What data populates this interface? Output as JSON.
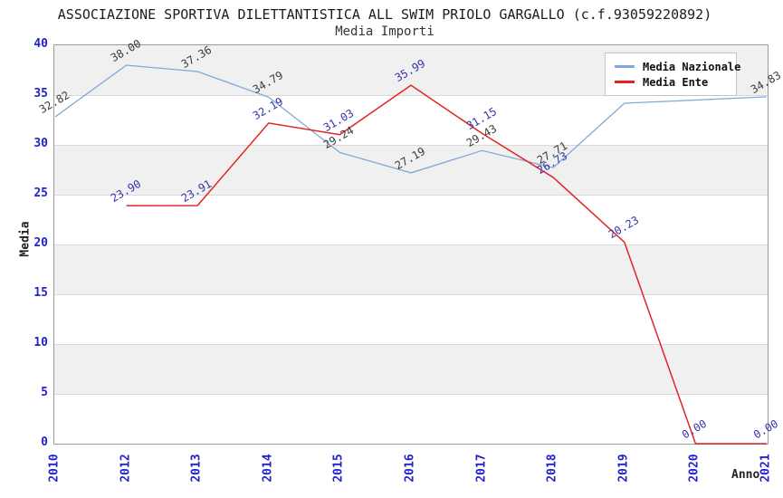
{
  "chart_data": {
    "type": "line",
    "title": "ASSOCIAZIONE SPORTIVA DILETTANTISTICA ALL SWIM PRIOLO GARGALLO (c.f.93059220892)",
    "subtitle": "Media Importi",
    "xlabel": "Anno",
    "ylabel": "Media",
    "categories": [
      "2010",
      "2012",
      "2013",
      "2014",
      "2015",
      "2016",
      "2017",
      "2018",
      "2019",
      "2020",
      "2021"
    ],
    "ylim": [
      0,
      40
    ],
    "ytick_step": 5,
    "grid": "horizontal",
    "legend_position": "top-right",
    "band_colors": [
      "#f0f0f0",
      "#ffffff"
    ],
    "grid_color": "#d9d9d9",
    "axis_tick_color": "#2222cc",
    "series": [
      {
        "name": "Media Nazionale",
        "color": "#7ea9da",
        "label_color": "#3a3a3a",
        "values": [
          32.82,
          38.0,
          37.36,
          34.79,
          29.24,
          27.19,
          29.43,
          27.71,
          34.18,
          34.5,
          34.83
        ],
        "labels": [
          "32.82",
          "38.00",
          "37.36",
          "34.79",
          "29.24",
          "27.19",
          "29.43",
          "27.71",
          "",
          "",
          "34.83"
        ]
      },
      {
        "name": "Media Ente",
        "color": "#e32222",
        "label_color": "#3333aa",
        "values": [
          null,
          23.9,
          23.91,
          32.19,
          31.03,
          35.99,
          31.15,
          26.73,
          20.23,
          0.0,
          0.0
        ],
        "labels": [
          "",
          "23.90",
          "23.91",
          "32.19",
          "31.03",
          "35.99",
          "31.15",
          "26.73",
          "20.23",
          "0.00",
          "0.00"
        ]
      }
    ]
  }
}
